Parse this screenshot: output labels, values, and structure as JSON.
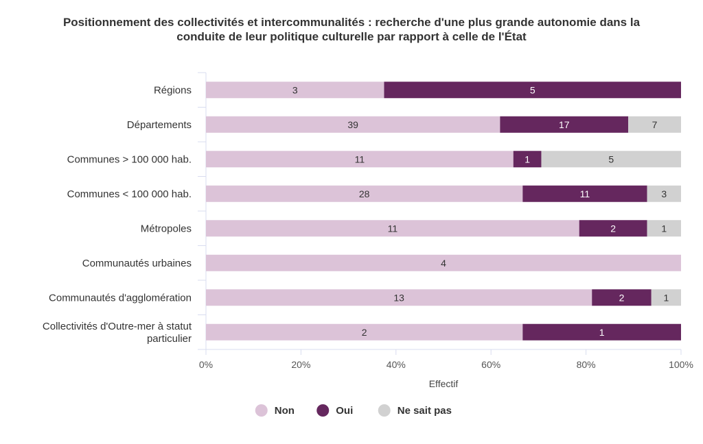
{
  "chart_data": {
    "type": "bar",
    "orientation": "horizontal",
    "stacking": "percent",
    "title_line1": "Positionnement des collectivités et intercommunalités : recherche d'une plus grande autonomie dans la",
    "title_line2": "conduite de leur politique culturelle par rapport à celle de l'État",
    "categories": [
      [
        "Régions"
      ],
      [
        "Départements"
      ],
      [
        "Communes > 100 000 hab."
      ],
      [
        "Communes < 100 000 hab."
      ],
      [
        "Métropoles"
      ],
      [
        "Communautés urbaines"
      ],
      [
        "Communautés d'agglomération"
      ],
      [
        "Collectivités d'Outre-mer à statut",
        "particulier"
      ]
    ],
    "series": [
      {
        "name": "Non",
        "color": "#dcc3d8",
        "text_color": "#333333",
        "values": [
          3,
          39,
          11,
          28,
          11,
          4,
          13,
          2
        ]
      },
      {
        "name": "Oui",
        "color": "#65275e",
        "text_color": "#ffffff",
        "values": [
          5,
          17,
          1,
          11,
          2,
          0,
          2,
          1
        ]
      },
      {
        "name": "Ne sait pas",
        "color": "#d1d1d1",
        "text_color": "#333333",
        "values": [
          0,
          7,
          5,
          3,
          1,
          0,
          1,
          0
        ]
      }
    ],
    "xlabel": "Effectif",
    "xticks": [
      "0%",
      "20%",
      "40%",
      "60%",
      "80%",
      "100%"
    ],
    "xlim": [
      0,
      100
    ],
    "legend_position": "bottom-center",
    "grid": false
  }
}
